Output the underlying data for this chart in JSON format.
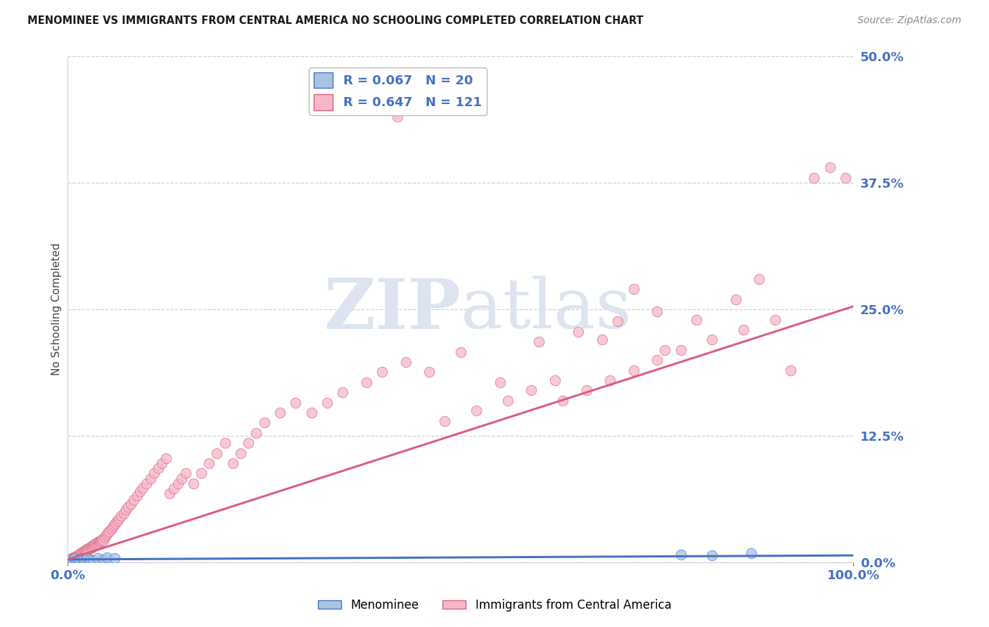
{
  "title": "MENOMINEE VS IMMIGRANTS FROM CENTRAL AMERICA NO SCHOOLING COMPLETED CORRELATION CHART",
  "source": "Source: ZipAtlas.com",
  "ylabel": "No Schooling Completed",
  "xlim": [
    0.0,
    1.0
  ],
  "ylim": [
    0.0,
    0.5
  ],
  "yticks": [
    0.0,
    0.125,
    0.25,
    0.375,
    0.5
  ],
  "ytick_labels": [
    "0.0%",
    "12.5%",
    "25.0%",
    "37.5%",
    "50.0%"
  ],
  "xticks": [
    0.0,
    1.0
  ],
  "xtick_labels": [
    "0.0%",
    "100.0%"
  ],
  "legend_1_label": "R = 0.067   N = 20",
  "legend_2_label": "R = 0.647   N = 121",
  "blue_fill": "#a8c4e0",
  "blue_edge": "#4472c4",
  "pink_fill": "#f5b8c8",
  "pink_edge": "#d95f7f",
  "blue_line": "#4472c4",
  "pink_line": "#d95f7f",
  "grid_color": "#d0d0d0",
  "title_color": "#1a1a1a",
  "source_color": "#888888",
  "watermark_color": "#dde4f0",
  "tick_color": "#4472c4",
  "ylabel_color": "#444444",
  "menominee_x": [
    0.003,
    0.005,
    0.007,
    0.009,
    0.011,
    0.013,
    0.015,
    0.018,
    0.02,
    0.023,
    0.025,
    0.028,
    0.032,
    0.038,
    0.045,
    0.05,
    0.06,
    0.78,
    0.82,
    0.87
  ],
  "menominee_y": [
    0.003,
    0.001,
    0.002,
    0.004,
    0.001,
    0.003,
    0.002,
    0.004,
    0.003,
    0.002,
    0.004,
    0.003,
    0.002,
    0.004,
    0.003,
    0.005,
    0.004,
    0.008,
    0.007,
    0.009
  ],
  "immigrants_x": [
    0.001,
    0.003,
    0.005,
    0.007,
    0.008,
    0.009,
    0.01,
    0.012,
    0.013,
    0.014,
    0.015,
    0.016,
    0.017,
    0.018,
    0.019,
    0.02,
    0.021,
    0.022,
    0.023,
    0.024,
    0.025,
    0.026,
    0.027,
    0.028,
    0.029,
    0.03,
    0.031,
    0.032,
    0.033,
    0.034,
    0.035,
    0.036,
    0.037,
    0.038,
    0.039,
    0.04,
    0.041,
    0.042,
    0.043,
    0.044,
    0.045,
    0.047,
    0.049,
    0.051,
    0.053,
    0.055,
    0.057,
    0.059,
    0.061,
    0.063,
    0.065,
    0.068,
    0.071,
    0.074,
    0.077,
    0.08,
    0.084,
    0.088,
    0.092,
    0.096,
    0.1,
    0.105,
    0.11,
    0.115,
    0.12,
    0.125,
    0.13,
    0.135,
    0.14,
    0.145,
    0.15,
    0.16,
    0.17,
    0.18,
    0.19,
    0.2,
    0.21,
    0.22,
    0.23,
    0.24,
    0.25,
    0.27,
    0.29,
    0.31,
    0.33,
    0.35,
    0.38,
    0.4,
    0.43,
    0.46,
    0.5,
    0.55,
    0.6,
    0.65,
    0.7,
    0.75,
    0.42,
    0.62,
    0.68,
    0.72,
    0.76,
    0.8,
    0.85,
    0.88,
    0.92,
    0.95,
    0.97,
    0.99,
    0.48,
    0.52,
    0.56,
    0.59,
    0.63,
    0.66,
    0.69,
    0.72,
    0.75,
    0.78,
    0.82,
    0.86,
    0.9
  ],
  "immigrants_y": [
    0.002,
    0.003,
    0.004,
    0.005,
    0.003,
    0.006,
    0.005,
    0.007,
    0.006,
    0.008,
    0.007,
    0.009,
    0.008,
    0.01,
    0.009,
    0.011,
    0.01,
    0.012,
    0.011,
    0.013,
    0.012,
    0.014,
    0.013,
    0.015,
    0.014,
    0.016,
    0.015,
    0.017,
    0.016,
    0.018,
    0.017,
    0.019,
    0.018,
    0.02,
    0.019,
    0.021,
    0.02,
    0.022,
    0.021,
    0.023,
    0.022,
    0.025,
    0.027,
    0.029,
    0.031,
    0.033,
    0.035,
    0.037,
    0.039,
    0.041,
    0.043,
    0.046,
    0.049,
    0.052,
    0.055,
    0.058,
    0.062,
    0.066,
    0.07,
    0.074,
    0.078,
    0.083,
    0.088,
    0.093,
    0.098,
    0.103,
    0.068,
    0.073,
    0.078,
    0.083,
    0.088,
    0.078,
    0.088,
    0.098,
    0.108,
    0.118,
    0.098,
    0.108,
    0.118,
    0.128,
    0.138,
    0.148,
    0.158,
    0.148,
    0.158,
    0.168,
    0.178,
    0.188,
    0.198,
    0.188,
    0.208,
    0.178,
    0.218,
    0.228,
    0.238,
    0.248,
    0.44,
    0.18,
    0.22,
    0.27,
    0.21,
    0.24,
    0.26,
    0.28,
    0.19,
    0.38,
    0.39,
    0.38,
    0.14,
    0.15,
    0.16,
    0.17,
    0.16,
    0.17,
    0.18,
    0.19,
    0.2,
    0.21,
    0.22,
    0.23,
    0.24
  ],
  "imm_line_x0": 0.0,
  "imm_line_x1": 1.0,
  "imm_line_y0": 0.003,
  "imm_line_y1": 0.253,
  "men_line_x0": 0.0,
  "men_line_x1": 1.0,
  "men_line_y0": 0.003,
  "men_line_y1": 0.007
}
